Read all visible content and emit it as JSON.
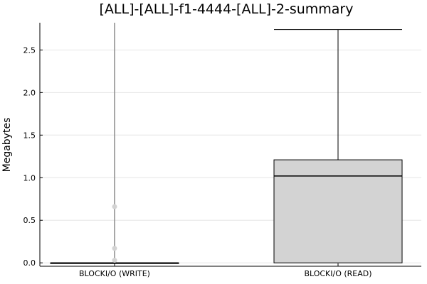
{
  "chart_data": {
    "type": "box",
    "title": "[ALL]-[ALL]-f1-4444-[ALL]-2-summary",
    "xlabel": "",
    "ylabel": "Megabytes",
    "ylim": [
      -0.04,
      2.82
    ],
    "yticks": [
      0.0,
      0.5,
      1.0,
      1.5,
      2.0,
      2.5
    ],
    "ytick_labels": [
      "0.0",
      "0.5",
      "1.0",
      "1.5",
      "2.0",
      "2.5"
    ],
    "grid": true,
    "categories": [
      "BLOCKI/O (WRITE)",
      "BLOCKI/O (READ)"
    ],
    "boxes": [
      {
        "category": "BLOCKI/O (WRITE)",
        "q1": 0.0,
        "median": 0.0,
        "q3": 0.0,
        "whisker_low": 0.0,
        "whisker_high": 0.0,
        "outliers": [
          0.03,
          0.17,
          0.66
        ],
        "extent_line_max": 2.82,
        "fill": "#d3d3d3",
        "line_color": "#000000",
        "spread_color": "#8c8c8c",
        "outlier_color": "#d3d3d3"
      },
      {
        "category": "BLOCKI/O (READ)",
        "q1": 0.0,
        "median": 1.02,
        "q3": 1.21,
        "whisker_low": 0.0,
        "whisker_high": 2.74,
        "outliers": [],
        "fill": "#d3d3d3",
        "line_color": "#000000"
      }
    ]
  }
}
